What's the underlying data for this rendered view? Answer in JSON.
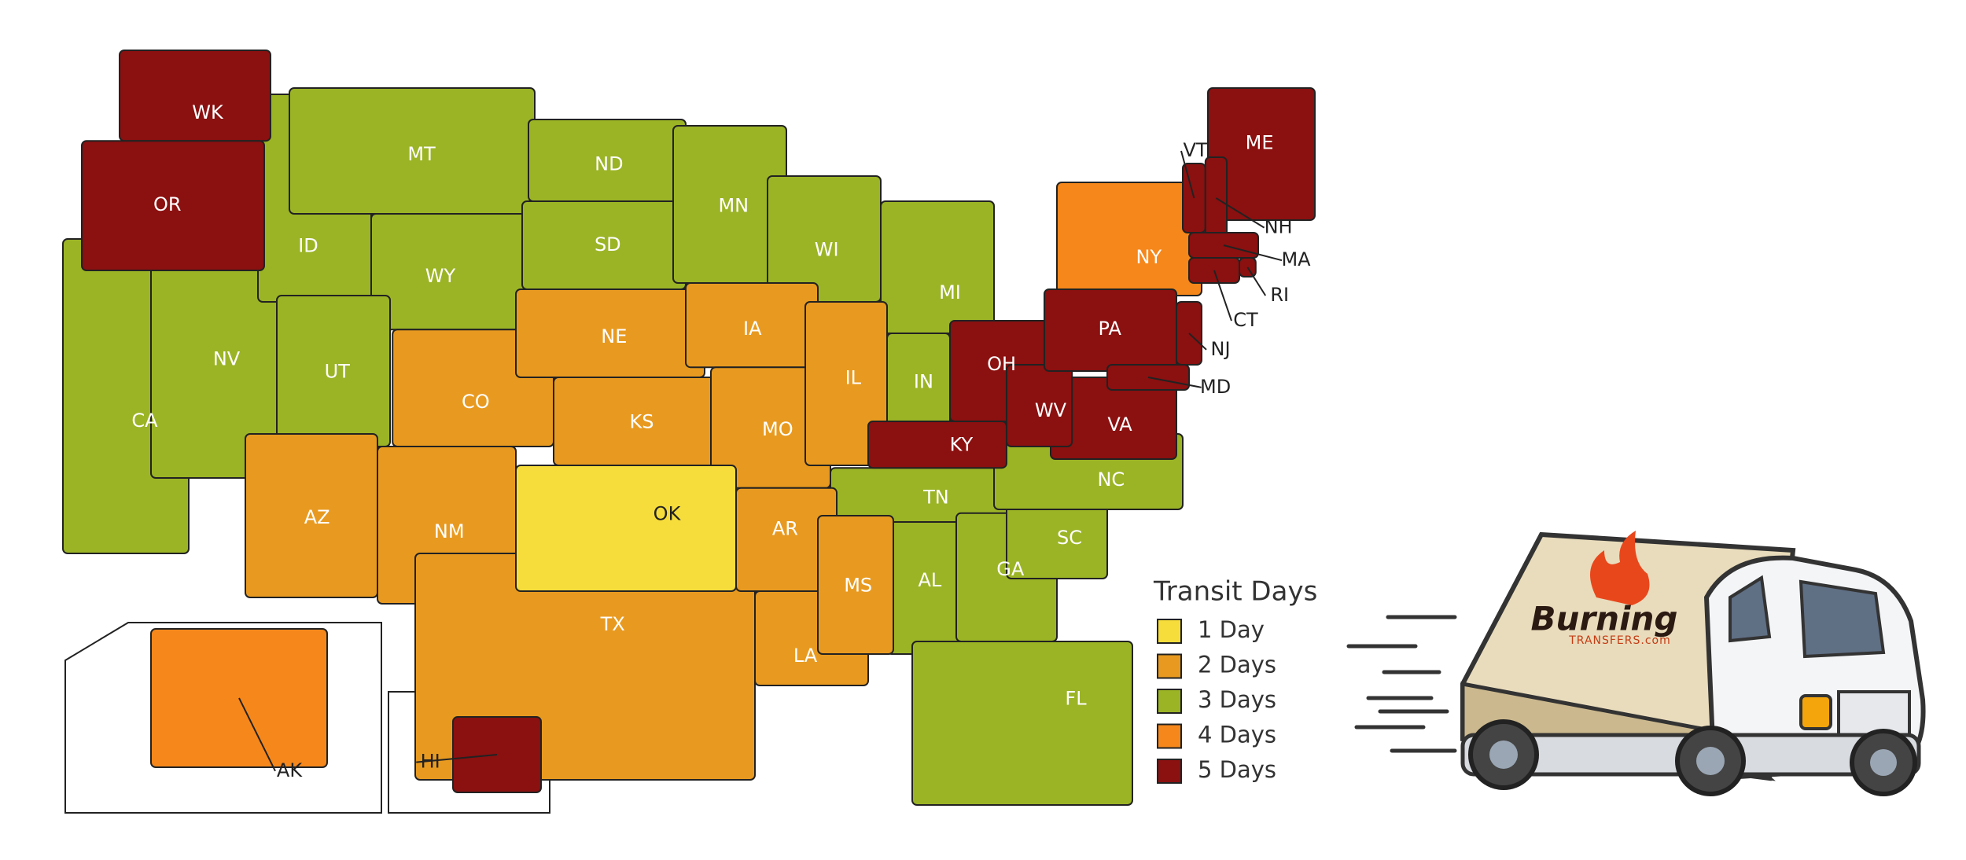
{
  "map": {
    "legend": {
      "title": "Transit Days",
      "items": [
        {
          "label": "1 Day",
          "color": "#f7dd3b",
          "states": [
            "OK"
          ]
        },
        {
          "label": "2 Days",
          "color": "#e89a20",
          "states": [
            "CO",
            "AZ",
            "NM",
            "NE",
            "KS",
            "TX",
            "IA",
            "MO",
            "AR",
            "LA",
            "IL",
            "MS"
          ]
        },
        {
          "label": "3 Days",
          "color": "#9bb426",
          "states": [
            "CA",
            "NV",
            "ID",
            "MT",
            "WY",
            "UT",
            "ND",
            "SD",
            "MN",
            "WI",
            "MI",
            "IN",
            "TN",
            "AL",
            "GA",
            "FL",
            "SC",
            "NC"
          ]
        },
        {
          "label": "4 Days",
          "color": "#f5871b",
          "states": [
            "NY",
            "AK"
          ]
        },
        {
          "label": "5 Days",
          "color": "#8b1010",
          "states": [
            "WK",
            "OR",
            "OH",
            "KY",
            "VA",
            "WV",
            "PA",
            "ME",
            "VT",
            "NH",
            "MA",
            "RI",
            "CT",
            "NJ",
            "MD",
            "HI"
          ]
        }
      ]
    }
  },
  "logo": {
    "name": "Burning",
    "tagline": "TRANSFERS.com"
  }
}
